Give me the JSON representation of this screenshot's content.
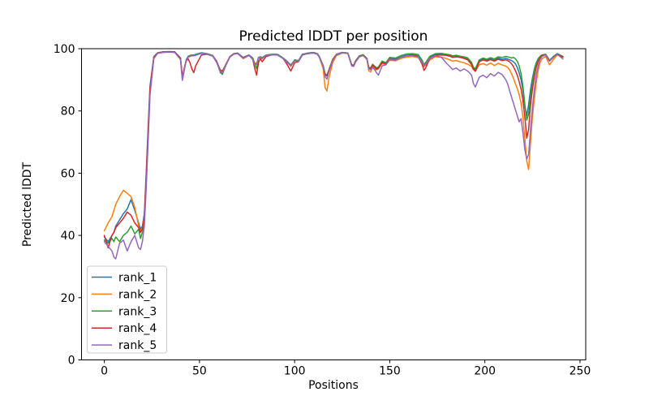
{
  "figure": {
    "title": "Predicted lDDT per position",
    "xlabel": "Positions",
    "ylabel": "Predicted lDDT"
  },
  "chart_data": {
    "type": "line",
    "title": "Predicted lDDT per position",
    "xlabel": "Positions",
    "ylabel": "Predicted lDDT",
    "xlim": [
      -12,
      253
    ],
    "ylim": [
      0,
      100
    ],
    "x_ticks": [
      0,
      50,
      100,
      150,
      200,
      250
    ],
    "y_ticks": [
      0,
      20,
      40,
      60,
      80,
      100
    ],
    "grid": false,
    "legend_position": "lower left",
    "legend_entries": [
      "rank_1",
      "rank_2",
      "rank_3",
      "rank_4",
      "rank_5"
    ],
    "x": [
      0,
      2,
      4,
      5,
      6,
      8,
      10,
      12,
      14,
      16,
      18,
      19,
      20,
      21,
      22,
      23,
      24,
      26,
      28,
      31,
      34,
      37,
      40,
      41,
      42,
      43,
      44,
      45,
      46,
      47,
      48,
      51,
      54,
      57,
      59,
      60,
      61,
      62,
      63,
      64,
      66,
      68,
      70,
      73,
      76,
      78,
      79,
      80,
      81,
      82,
      83,
      85,
      88,
      91,
      94,
      96,
      98,
      100,
      102,
      104,
      106,
      108,
      110,
      112,
      113,
      115,
      116,
      117,
      118,
      120,
      122,
      125,
      128,
      130,
      131,
      132,
      134,
      136,
      138,
      139,
      140,
      141,
      142,
      143,
      144,
      146,
      148,
      150,
      153,
      156,
      159,
      162,
      165,
      167,
      168,
      169,
      171,
      174,
      177,
      180,
      182,
      183,
      185,
      187,
      189,
      191,
      193,
      194,
      195,
      197,
      199,
      201,
      203,
      205,
      207,
      209,
      211,
      212,
      213,
      214,
      215,
      216,
      217,
      218,
      219,
      220,
      221,
      222,
      223,
      224,
      225,
      226,
      227,
      228,
      229,
      230,
      232,
      234,
      236,
      238,
      240,
      241
    ],
    "series": [
      {
        "name": "rank_1",
        "color": "#1f77b4",
        "values": [
          39.5,
          38,
          40,
          41,
          43,
          45,
          47,
          48.5,
          51.5,
          48,
          44,
          42,
          43,
          47,
          60,
          75,
          88,
          97.5,
          98.7,
          99,
          99.1,
          99,
          97,
          90.7,
          93.5,
          96.5,
          97.5,
          97.8,
          98,
          98,
          98.2,
          98.7,
          98.4,
          97.8,
          96,
          94.5,
          92.8,
          91.7,
          93.5,
          95,
          97.5,
          98.4,
          98.6,
          97.2,
          98,
          97,
          95.2,
          95,
          97.2,
          97.4,
          97.2,
          98,
          98.2,
          98.2,
          97,
          96,
          94.6,
          96.4,
          96.2,
          98.2,
          98.5,
          98.7,
          98.8,
          98.4,
          97.5,
          94.5,
          91.8,
          91.3,
          93,
          96.5,
          98.2,
          98.8,
          98.6,
          94.8,
          94.6,
          96,
          97.6,
          98,
          96.8,
          93.9,
          93.7,
          94.9,
          94.2,
          93.6,
          93.9,
          95.8,
          95.3,
          96.8,
          96.6,
          97.4,
          97.9,
          98.1,
          97.7,
          96,
          94.7,
          95.4,
          97.2,
          98.1,
          98.3,
          97.8,
          97.5,
          97.2,
          97.4,
          97.2,
          97,
          96.6,
          95.3,
          93.8,
          93.2,
          96,
          96.7,
          96.2,
          96.8,
          96.3,
          97,
          96.6,
          96.9,
          96.7,
          96.4,
          96.2,
          95.8,
          95.2,
          94,
          92.3,
          90,
          86.5,
          81.5,
          78.5,
          82,
          87,
          90.5,
          93.5,
          95.5,
          96.8,
          97.5,
          98,
          98.2,
          96.2,
          97.4,
          98.4,
          97.8,
          97.5
        ]
      },
      {
        "name": "rank_2",
        "color": "#ff7f0e",
        "values": [
          41.5,
          44,
          46,
          48,
          50,
          52.5,
          54.5,
          53.5,
          52.5,
          49,
          43,
          41,
          42.5,
          46,
          58,
          73,
          87,
          97.3,
          98.6,
          98.9,
          99,
          98.9,
          96.8,
          90.5,
          93.3,
          96.3,
          97.3,
          97.6,
          97.8,
          97.8,
          98,
          98.6,
          98.3,
          97.7,
          95.8,
          94.3,
          93,
          92.5,
          93.8,
          95.2,
          97.4,
          98.3,
          98.5,
          96.8,
          97.8,
          96.8,
          95.5,
          95.2,
          97,
          97.3,
          97,
          97.9,
          98.1,
          98.1,
          96.9,
          95.8,
          94.3,
          96.2,
          96,
          98,
          98.4,
          98.6,
          98.7,
          98.3,
          97.2,
          93.5,
          87.5,
          86.4,
          90.5,
          95.5,
          97.8,
          98.6,
          98.5,
          94.6,
          94.4,
          95.8,
          97.4,
          97.8,
          96.5,
          92.9,
          92.5,
          94.3,
          93.8,
          93.2,
          93.5,
          95.3,
          94.9,
          96.3,
          96.1,
          96.9,
          97.3,
          97.5,
          97.1,
          95.4,
          94.2,
          94.8,
          96.4,
          97.4,
          97.3,
          96.8,
          96.3,
          96,
          96.2,
          95.8,
          95.5,
          95,
          94.3,
          93.3,
          92.8,
          94.8,
          95.2,
          94.7,
          95.4,
          94.6,
          95.3,
          94.8,
          94.4,
          94,
          93.2,
          92,
          90.5,
          88.8,
          87.2,
          85.3,
          82.5,
          78,
          71,
          64,
          61.2,
          70,
          78,
          84,
          89,
          93,
          95.5,
          96.8,
          97.5,
          94.8,
          96.5,
          98,
          97.5,
          97.3
        ]
      },
      {
        "name": "rank_3",
        "color": "#2ca02c",
        "values": [
          38.5,
          37.5,
          39,
          38,
          39.5,
          38,
          40,
          41,
          43,
          40.5,
          42,
          39,
          41,
          45,
          57,
          72,
          86,
          97,
          98.6,
          98.9,
          99,
          98.9,
          96.9,
          90,
          93.3,
          96.3,
          97.4,
          97.7,
          97.9,
          97.9,
          98.1,
          98.6,
          98.3,
          97.7,
          95.7,
          94,
          92.2,
          92,
          93.3,
          94.8,
          97.4,
          98.3,
          98.5,
          97,
          97.9,
          96.9,
          95.3,
          93.5,
          96.8,
          97.2,
          96.9,
          97.9,
          98.1,
          98.1,
          96.9,
          95.7,
          94.8,
          96.3,
          96.1,
          98.1,
          98.4,
          98.6,
          98.7,
          98.3,
          97.4,
          94.6,
          92,
          91.5,
          93.2,
          96.6,
          98.2,
          98.8,
          98.6,
          94.9,
          94.7,
          96.1,
          97.7,
          98.1,
          96.9,
          93.9,
          93.9,
          95,
          94.4,
          93.9,
          94.1,
          96,
          95.5,
          97.2,
          97,
          97.8,
          98.3,
          98.4,
          98.1,
          96.3,
          94.9,
          95.7,
          97.5,
          98.4,
          98.5,
          98.2,
          98,
          97.7,
          97.9,
          97.6,
          97.4,
          97,
          95.6,
          94,
          93.5,
          96.4,
          97,
          96.6,
          97.1,
          96.7,
          97.4,
          97.2,
          97.5,
          97.4,
          97.2,
          97,
          97.2,
          96.8,
          96,
          94.5,
          92,
          88,
          82,
          77,
          79,
          85,
          89.5,
          93,
          95.3,
          96.8,
          97.5,
          98,
          98.2,
          96.3,
          97.5,
          98.4,
          97.8,
          97.5
        ]
      },
      {
        "name": "rank_4",
        "color": "#d62728",
        "values": [
          40,
          36,
          40,
          41,
          42.5,
          44,
          45.5,
          47.5,
          46.5,
          44,
          42.5,
          41,
          42,
          45.5,
          58,
          73,
          87,
          97.2,
          98.6,
          98.9,
          99,
          98.9,
          96.9,
          91,
          93.6,
          96,
          96.8,
          95.5,
          93.5,
          92.3,
          94.5,
          98,
          98.2,
          97.6,
          95.9,
          94.4,
          93.2,
          92.8,
          93.9,
          95.1,
          97.4,
          98.3,
          98.5,
          97.1,
          97.9,
          96.5,
          93.8,
          91.5,
          95.5,
          96.8,
          95.8,
          97.5,
          98,
          98,
          96.8,
          95,
          92.8,
          95.5,
          95.8,
          98,
          98.3,
          98.5,
          98.6,
          98.2,
          97.3,
          94.4,
          91.6,
          91.2,
          92.9,
          96.4,
          98.1,
          98.7,
          98.5,
          94.7,
          94.5,
          95.9,
          97.5,
          97.9,
          96.7,
          93.8,
          93.6,
          94.7,
          94.1,
          93.4,
          93.7,
          95.6,
          95.1,
          96.6,
          96.4,
          97.2,
          97.7,
          97.9,
          97.5,
          95,
          93,
          94,
          96.8,
          97.9,
          98,
          97.9,
          97.6,
          97.3,
          97.5,
          97.2,
          96.9,
          96.4,
          94.9,
          93.4,
          92.7,
          95.8,
          96.4,
          96,
          96.5,
          96,
          96.6,
          96.2,
          96.4,
          96.2,
          95.8,
          95.2,
          94.2,
          93,
          91.5,
          89.5,
          87,
          83.5,
          78,
          71.2,
          74,
          82,
          87,
          91,
          94,
          96,
          97,
          97.8,
          98,
          96,
          97.2,
          98.2,
          97.6,
          97.3
        ]
      },
      {
        "name": "rank_5",
        "color": "#9467bd",
        "values": [
          38,
          36.5,
          35,
          33,
          32.5,
          37.5,
          38.5,
          35,
          38,
          40,
          36,
          35.5,
          38,
          43,
          55,
          70,
          85,
          96.8,
          98.5,
          98.8,
          98.9,
          98.8,
          96.5,
          89.8,
          93,
          96.2,
          97.2,
          97.5,
          97.7,
          97.7,
          97.9,
          98.5,
          98.2,
          97.6,
          95.6,
          94.2,
          92.5,
          92.3,
          93.5,
          94.9,
          97.3,
          98.2,
          98.4,
          97,
          97.8,
          96.7,
          94.8,
          95,
          96.9,
          97.1,
          96.8,
          97.8,
          98,
          98,
          96.8,
          95.6,
          94.5,
          96.1,
          95.9,
          97.9,
          98.3,
          98.5,
          98.6,
          98.2,
          97.3,
          94.4,
          91,
          90.2,
          92.5,
          96.2,
          98,
          98.7,
          98.5,
          94.5,
          94.3,
          95.7,
          97.4,
          97.8,
          96.6,
          93.5,
          93.2,
          94,
          93.3,
          92.3,
          91.5,
          94.5,
          94.8,
          96.5,
          96.3,
          97.2,
          97.7,
          97.7,
          97.4,
          95.7,
          94.5,
          95.1,
          96.9,
          97.7,
          97.3,
          95.2,
          94,
          93.3,
          93.8,
          92.8,
          93.5,
          92.8,
          91.5,
          88.8,
          87.7,
          90.8,
          91.5,
          90.7,
          92,
          91.2,
          92.4,
          91.7,
          90,
          88.7,
          86.5,
          84.5,
          82.5,
          80.5,
          78.5,
          76.5,
          77.5,
          73,
          67.5,
          64.5,
          66,
          74,
          81,
          87,
          91.5,
          94.5,
          96.5,
          97.5,
          98,
          96,
          97.2,
          98.2,
          97.2,
          96.7
        ]
      }
    ]
  },
  "style": {
    "spine_color": "#000000",
    "background": "#ffffff",
    "legend_border": "#cccccc"
  }
}
